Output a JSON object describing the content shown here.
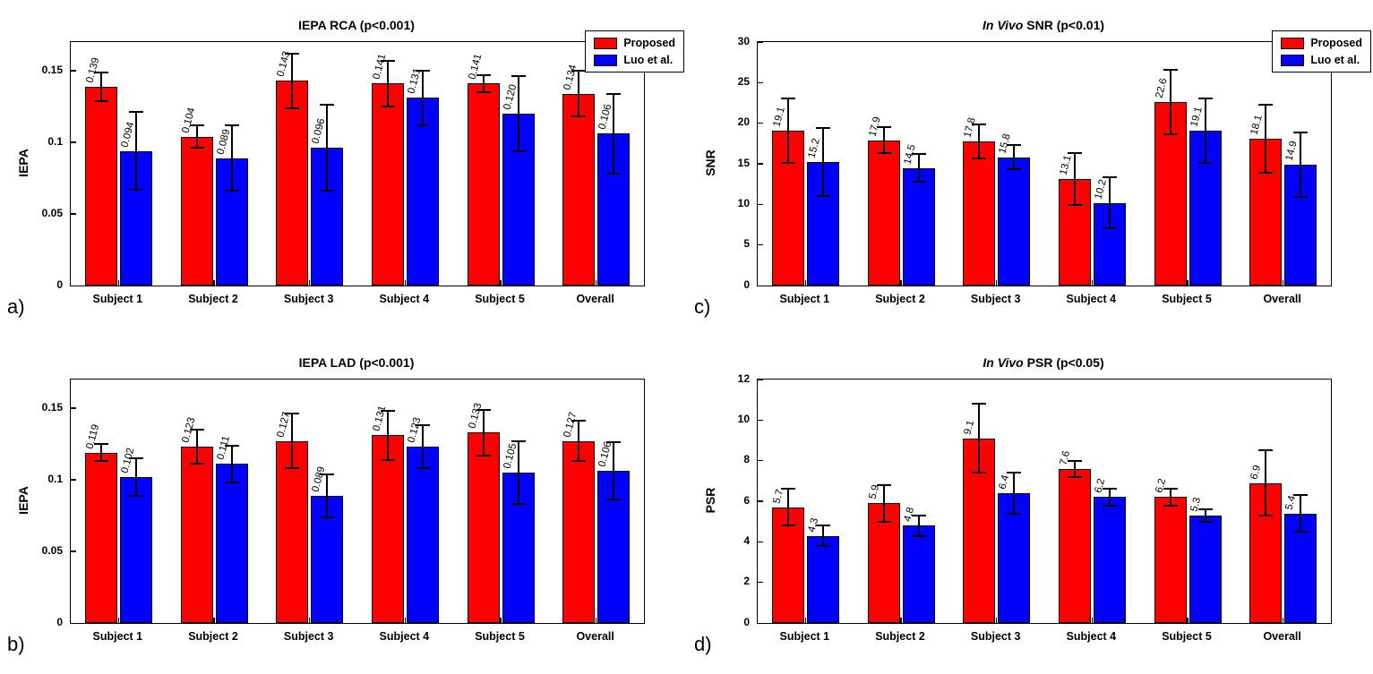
{
  "figure": {
    "background": "#ffffff",
    "axis_color": "#000000",
    "bar_edge_color": "#000000",
    "error_bar_color": "#000000"
  },
  "legend": {
    "labels": [
      "Proposed",
      "Luo et al."
    ],
    "colors": [
      "#ff0000",
      "#0000ff"
    ],
    "position": "top-right"
  },
  "panels": [
    {
      "corner_label": "a)"
    },
    {
      "corner_label": "b)"
    },
    {
      "corner_label": "c)"
    },
    {
      "corner_label": "d)"
    }
  ],
  "chart_data": [
    {
      "type": "bar",
      "title_italic_prefix": "",
      "title": "IEPA RCA (p<0.001)",
      "ylabel": "IEPA",
      "xlabel": "",
      "categories": [
        "Subject 1",
        "Subject 2",
        "Subject 3",
        "Subject 4",
        "Subject 5",
        "Overall"
      ],
      "ylim": [
        0,
        0.17
      ],
      "yticks": [
        0,
        0.05,
        0.1,
        0.15
      ],
      "ytick_labels": [
        "0",
        "0.05",
        "0.1",
        "0.15"
      ],
      "grid": false,
      "legend_visible": true,
      "series": [
        {
          "name": "Proposed",
          "color": "#ff0000",
          "values": [
            0.139,
            0.104,
            0.143,
            0.141,
            0.141,
            0.134
          ],
          "errors": [
            0.01,
            0.008,
            0.019,
            0.016,
            0.006,
            0.016
          ],
          "labels": [
            "0.139",
            "0.104",
            "0.143",
            "0.141",
            "0.141",
            "0.134"
          ]
        },
        {
          "name": "Luo et al.",
          "color": "#0000ff",
          "values": [
            0.094,
            0.089,
            0.096,
            0.131,
            0.12,
            0.106
          ],
          "errors": [
            0.027,
            0.023,
            0.03,
            0.019,
            0.026,
            0.028
          ],
          "labels": [
            "0.094",
            "0.089",
            "0.096",
            "0.131",
            "0.120",
            "0.106"
          ]
        }
      ]
    },
    {
      "type": "bar",
      "title_italic_prefix": "",
      "title": "IEPA LAD (p<0.001)",
      "ylabel": "IEPA",
      "xlabel": "",
      "categories": [
        "Subject 1",
        "Subject 2",
        "Subject 3",
        "Subject 4",
        "Subject 5",
        "Overall"
      ],
      "ylim": [
        0,
        0.17
      ],
      "yticks": [
        0,
        0.05,
        0.1,
        0.15
      ],
      "ytick_labels": [
        "0",
        "0.05",
        "0.1",
        "0.15"
      ],
      "grid": false,
      "legend_visible": false,
      "series": [
        {
          "name": "Proposed",
          "color": "#ff0000",
          "values": [
            0.119,
            0.123,
            0.127,
            0.131,
            0.133,
            0.127
          ],
          "errors": [
            0.006,
            0.012,
            0.019,
            0.017,
            0.016,
            0.014
          ],
          "labels": [
            "0.119",
            "0.123",
            "0.127",
            "0.131",
            "0.133",
            "0.127"
          ]
        },
        {
          "name": "Luo et al.",
          "color": "#0000ff",
          "values": [
            0.102,
            0.111,
            0.089,
            0.123,
            0.105,
            0.106
          ],
          "errors": [
            0.013,
            0.013,
            0.015,
            0.015,
            0.022,
            0.02
          ],
          "labels": [
            "0.102",
            "0.111",
            "0.089",
            "0.123",
            "0.105",
            "0.106"
          ]
        }
      ]
    },
    {
      "type": "bar",
      "title_italic_prefix": "In Vivo ",
      "title": "SNR (p<0.01)",
      "ylabel": "SNR",
      "xlabel": "",
      "categories": [
        "Subject 1",
        "Subject 2",
        "Subject 3",
        "Subject 4",
        "Subject 5",
        "Overall"
      ],
      "ylim": [
        0,
        30
      ],
      "yticks": [
        0,
        5,
        10,
        15,
        20,
        25,
        30
      ],
      "ytick_labels": [
        "0",
        "5",
        "10",
        "15",
        "20",
        "25",
        "30"
      ],
      "grid": false,
      "legend_visible": true,
      "series": [
        {
          "name": "Proposed",
          "color": "#ff0000",
          "values": [
            19.1,
            17.9,
            17.8,
            13.1,
            22.6,
            18.1
          ],
          "errors": [
            4.0,
            1.6,
            2.1,
            3.2,
            4.0,
            4.2
          ],
          "labels": [
            "19.1",
            "17.9",
            "17.8",
            "13.1",
            "22.6",
            "18.1"
          ]
        },
        {
          "name": "Luo et al.",
          "color": "#0000ff",
          "values": [
            15.2,
            14.5,
            15.8,
            10.2,
            19.1,
            14.9
          ],
          "errors": [
            4.2,
            1.7,
            1.5,
            3.1,
            4.0,
            4.0
          ],
          "labels": [
            "15.2",
            "14.5",
            "15.8",
            "10.2",
            "19.1",
            "14.9"
          ]
        }
      ]
    },
    {
      "type": "bar",
      "title_italic_prefix": "In Vivo ",
      "title": "PSR (p<0.05)",
      "ylabel": "PSR",
      "xlabel": "",
      "categories": [
        "Subject 1",
        "Subject 2",
        "Subject 3",
        "Subject 4",
        "Subject 5",
        "Overall"
      ],
      "ylim": [
        0,
        12
      ],
      "yticks": [
        0,
        2,
        4,
        6,
        8,
        10,
        12
      ],
      "ytick_labels": [
        "0",
        "2",
        "4",
        "6",
        "8",
        "10",
        "12"
      ],
      "grid": false,
      "legend_visible": false,
      "series": [
        {
          "name": "Proposed",
          "color": "#ff0000",
          "values": [
            5.7,
            5.9,
            9.1,
            7.6,
            6.2,
            6.9
          ],
          "errors": [
            0.9,
            0.9,
            1.7,
            0.4,
            0.4,
            1.6
          ],
          "labels": [
            "5.7",
            "5.9",
            "9.1",
            "7.6",
            "6.2",
            "6.9"
          ]
        },
        {
          "name": "Luo et al.",
          "color": "#0000ff",
          "values": [
            4.3,
            4.8,
            6.4,
            6.2,
            5.3,
            5.4
          ],
          "errors": [
            0.5,
            0.5,
            1.0,
            0.4,
            0.3,
            0.9
          ],
          "labels": [
            "4.3",
            "4.8",
            "6.4",
            "6.2",
            "5.3",
            "5.4"
          ]
        }
      ]
    }
  ]
}
